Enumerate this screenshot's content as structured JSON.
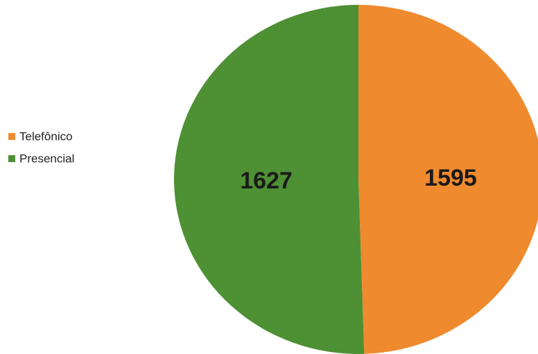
{
  "chart_data": {
    "type": "pie",
    "categories": [
      "Telefônico",
      "Presencial"
    ],
    "values": [
      1595,
      1627
    ],
    "colors": [
      "#ef8a2e",
      "#4e9034"
    ]
  }
}
